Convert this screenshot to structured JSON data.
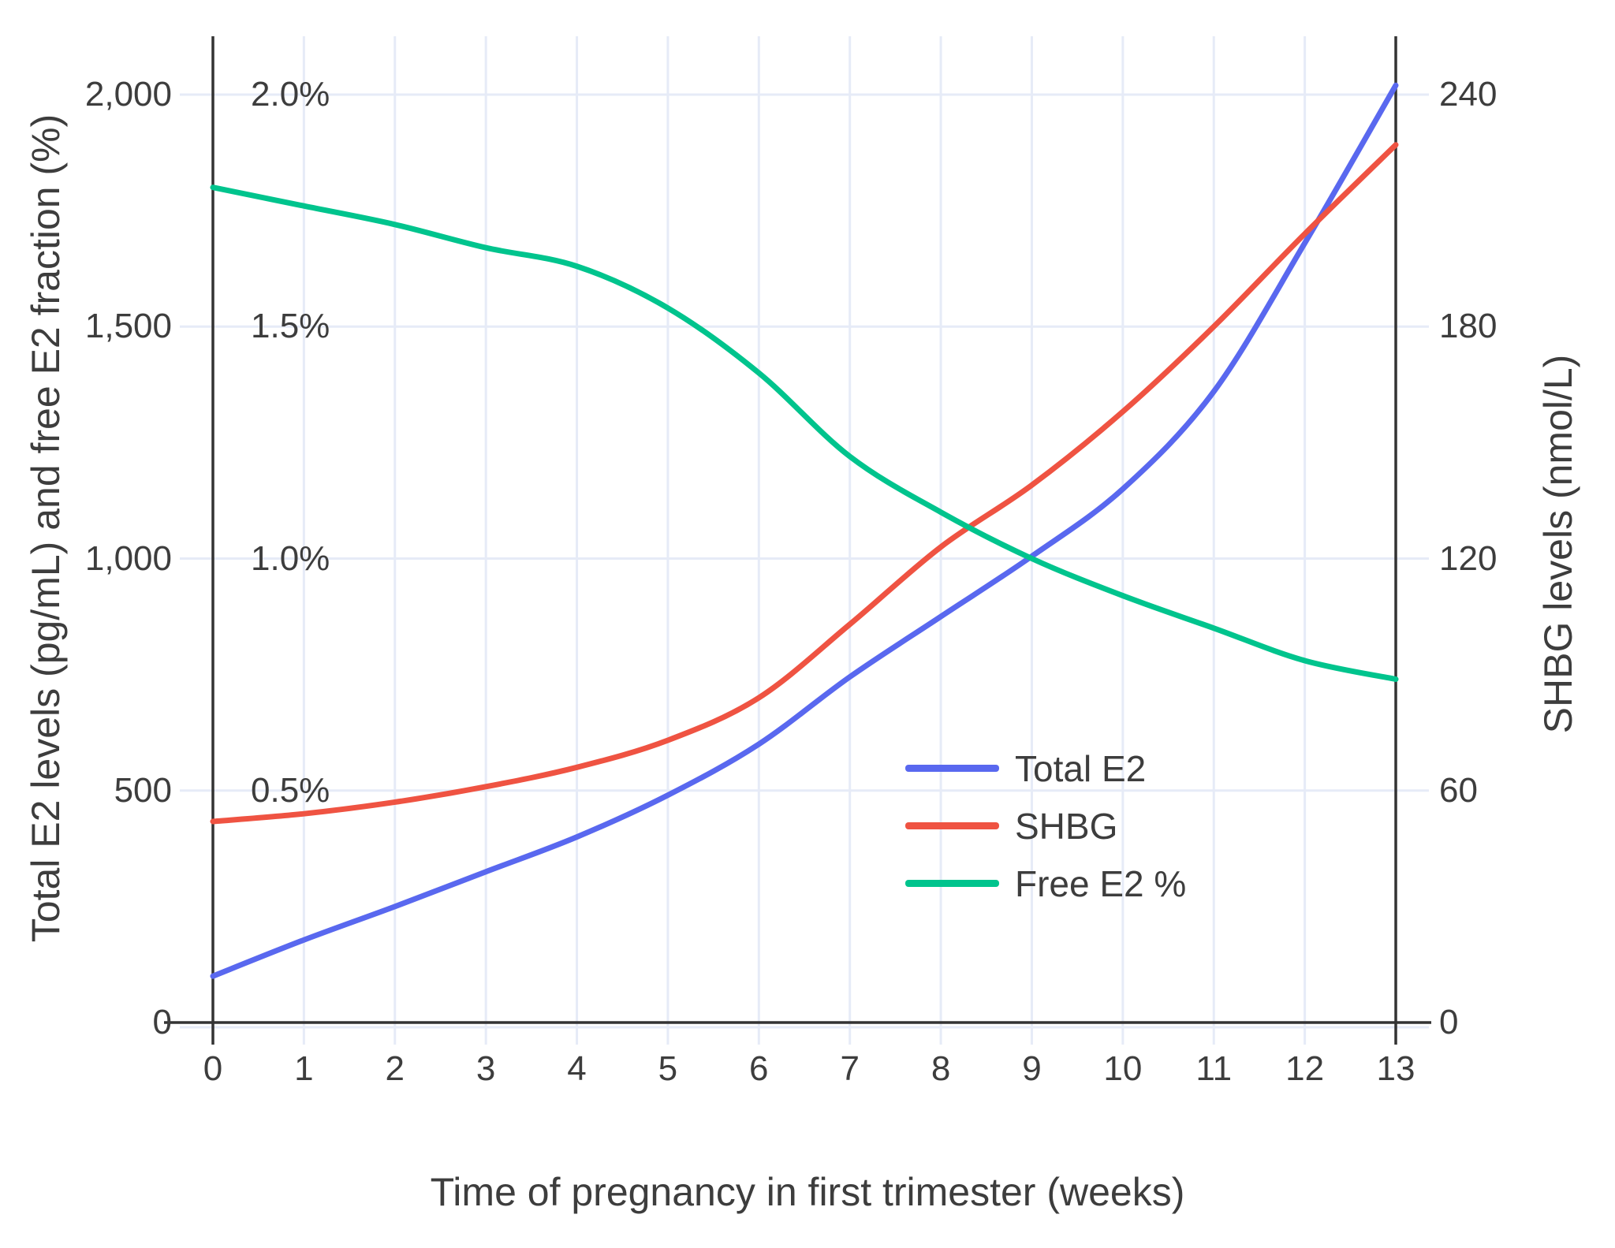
{
  "chart_data": {
    "type": "line",
    "title": "",
    "xlabel": "Time of pregnancy in first trimester (weeks)",
    "ylabel_left": "Total E2 levels (pg/mL) and free E2 fraction (%)",
    "ylabel_right": "SHBG levels (nmol/L)",
    "x": [
      0,
      1,
      2,
      3,
      4,
      5,
      6,
      7,
      8,
      9,
      10,
      11,
      12,
      13
    ],
    "x_tick_labels": [
      "0",
      "1",
      "2",
      "3",
      "4",
      "5",
      "6",
      "7",
      "8",
      "9",
      "10",
      "11",
      "12",
      "13"
    ],
    "left_axis": {
      "range": [
        0,
        2000
      ],
      "ticks": [
        {
          "v": 0,
          "label": "0"
        },
        {
          "v": 500,
          "label": "500"
        },
        {
          "v": 1000,
          "label": "1,000"
        },
        {
          "v": 1500,
          "label": "1,500"
        },
        {
          "v": 2000,
          "label": "2,000"
        }
      ]
    },
    "percent_axis": {
      "range": [
        0,
        2
      ],
      "ticks": [
        {
          "v": 0.5,
          "label": "0.5%"
        },
        {
          "v": 1.0,
          "label": "1.0%"
        },
        {
          "v": 1.5,
          "label": "1.5%"
        },
        {
          "v": 2.0,
          "label": "2.0%"
        }
      ]
    },
    "right_axis": {
      "range": [
        0,
        240
      ],
      "ticks": [
        {
          "v": 0,
          "label": "0"
        },
        {
          "v": 60,
          "label": "60"
        },
        {
          "v": 120,
          "label": "120"
        },
        {
          "v": 180,
          "label": "180"
        },
        {
          "v": 240,
          "label": "240"
        }
      ]
    },
    "grid": {
      "show": true,
      "horizontal_at_left_values": [
        500,
        1000,
        1500,
        2000
      ],
      "vertical_at_weeks": [
        1,
        2,
        3,
        4,
        5,
        6,
        7,
        8,
        9,
        10,
        11,
        12
      ]
    },
    "series": [
      {
        "name": "Total E2",
        "axis": "left",
        "unit": "pg/mL",
        "color": "#5968EF",
        "values": [
          100,
          178,
          250,
          325,
          400,
          490,
          600,
          745,
          875,
          1005,
          1150,
          1360,
          1680,
          2020
        ]
      },
      {
        "name": "SHBG",
        "axis": "right",
        "unit": "nmol/L",
        "color": "#EF5342",
        "values": [
          52,
          54,
          57,
          61,
          66,
          73,
          84,
          103,
          123,
          139,
          158,
          180,
          204,
          227
        ]
      },
      {
        "name": "Free E2 %",
        "axis": "percent",
        "unit": "%",
        "color": "#00C48D",
        "values": [
          1.8,
          1.76,
          1.72,
          1.67,
          1.63,
          1.54,
          1.4,
          1.22,
          1.1,
          1.0,
          0.92,
          0.85,
          0.78,
          0.74
        ]
      }
    ],
    "legend": {
      "position": "inside bottom-right",
      "entries": [
        "Total E2",
        "SHBG",
        "Free E2 %"
      ]
    },
    "colors": {
      "background": "#FFFFFF",
      "grid": "#E6EBF7",
      "axis": "#333333",
      "text": "#3D3D3D"
    }
  }
}
